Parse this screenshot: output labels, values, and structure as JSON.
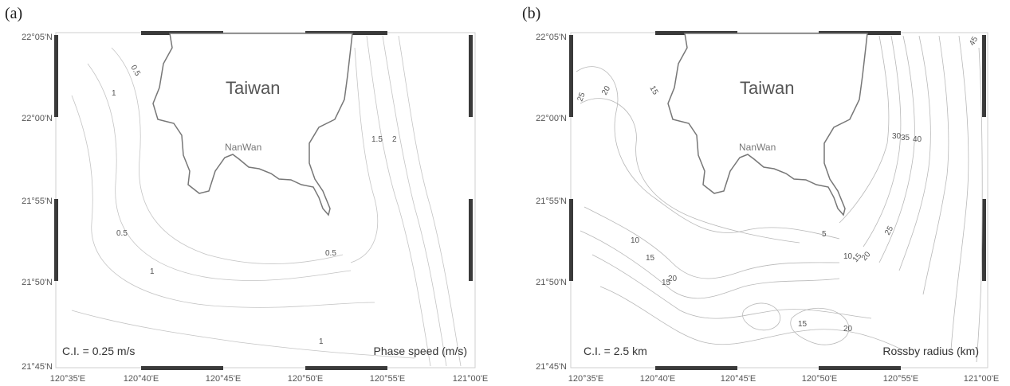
{
  "panels": [
    {
      "id": "a",
      "letter": "(a)",
      "island_label": "Taiwan",
      "place_label": "NanWan",
      "contour_interval": "C.I. = 0.25 m/s",
      "field_label": "Phase speed (m/s)",
      "lat_labels": [
        "22°05'N",
        "22°00'N",
        "21°55'N",
        "21°50'N",
        "21°45'N"
      ],
      "lon_labels": [
        "120°35'E",
        "120°40'E",
        "120°45'E",
        "120°50'E",
        "120°55'E",
        "121°00'E"
      ],
      "contour_labels": [
        "0.5",
        "1",
        "1.5",
        "2",
        "0.5",
        "0.5",
        "1",
        "1"
      ]
    },
    {
      "id": "b",
      "letter": "(b)",
      "island_label": "Taiwan",
      "place_label": "NanWan",
      "contour_interval": "C.I. = 2.5 km",
      "field_label": "Rossby radius (km)",
      "lat_labels": [
        "22°05'N",
        "22°00'N",
        "21°55'N",
        "21°50'N",
        "21°45'N"
      ],
      "lon_labels": [
        "120°35'E",
        "120°40'E",
        "120°45'E",
        "120°50'E",
        "120°55'E",
        "121°00'E"
      ],
      "contour_labels": [
        "25",
        "20",
        "15",
        "30",
        "35",
        "40",
        "45",
        "10",
        "15",
        "5",
        "10",
        "15",
        "20",
        "25",
        "15",
        "20",
        "15",
        "20"
      ]
    }
  ]
}
